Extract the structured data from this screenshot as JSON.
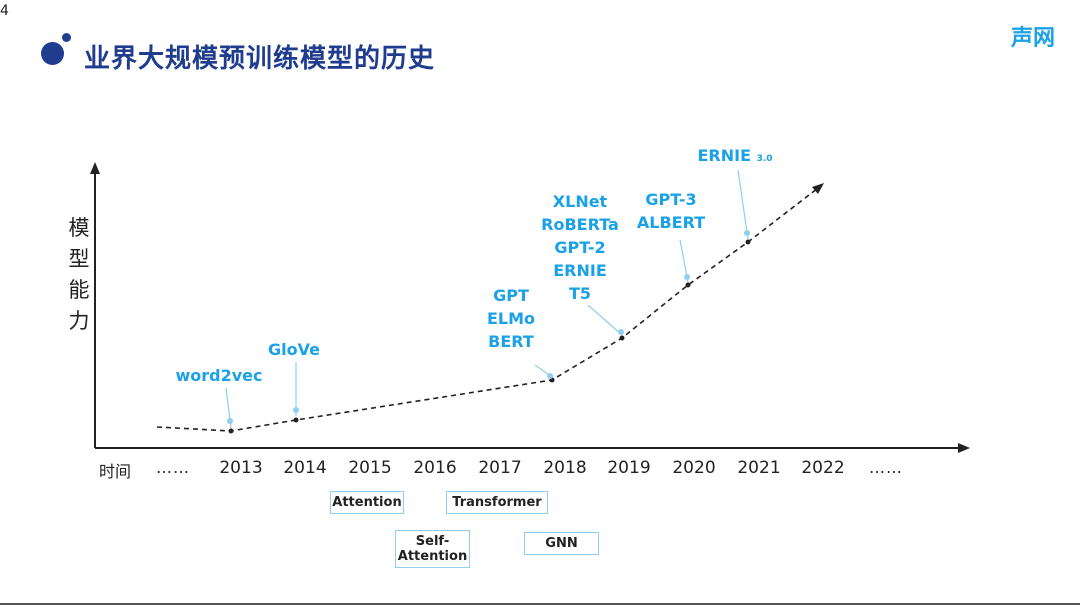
{
  "page_number": "4",
  "title": "业界大规模预训练模型的历史",
  "logo_text": "声网",
  "ylabel_chars": [
    "模",
    "型",
    "能",
    "力"
  ],
  "xaxis_label": "时间",
  "timeline": {
    "leading_ellipsis": "……",
    "trailing_ellipsis": "……",
    "years": [
      "2013",
      "2014",
      "2015",
      "2016",
      "2017",
      "2018",
      "2019",
      "2020",
      "2021",
      "2022"
    ]
  },
  "models": {
    "word2vec": "word2vec",
    "glove": "GloVe",
    "gpt": "GPT",
    "elmo": "ELMo",
    "bert": "BERT",
    "xlnet": "XLNet",
    "roberta": "RoBERTa",
    "gpt2": "GPT-2",
    "ernie": "ERNIE",
    "t5": "T5",
    "gpt3": "GPT-3",
    "albert": "ALBERT",
    "ernie3": "ERNIE",
    "ernie3_version": "3.0"
  },
  "techniques": {
    "attention": "Attention",
    "self_attention_1": "Self-",
    "self_attention_2": "Attention",
    "transformer": "Transformer",
    "gnn": "GNN"
  },
  "colors": {
    "title": "#1f3c8f",
    "model_label": "#1aa1e6",
    "box_border": "#8fd0ee",
    "axis": "#222222"
  }
}
